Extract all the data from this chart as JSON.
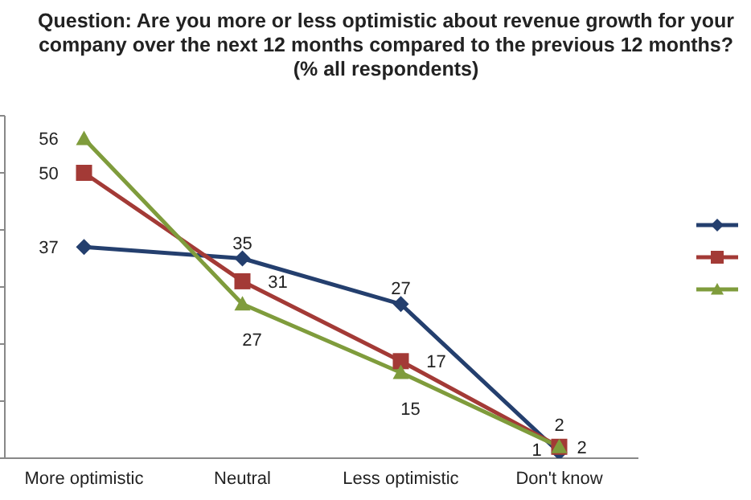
{
  "chart_data": {
    "type": "line",
    "title": "Question: Are you more or less optimistic about revenue growth for your company over the next 12 months compared to the previous 12 months?  (% all respondents)",
    "categories": [
      "More optimistic",
      "Neutral",
      "Less optimistic",
      "Don't know"
    ],
    "series": [
      {
        "color": "#243f6e",
        "values": [
          37,
          35,
          27,
          1
        ],
        "marker": "diamond"
      },
      {
        "color": "#a33a36",
        "values": [
          50,
          31,
          17,
          2
        ],
        "marker": "square"
      },
      {
        "color": "#7f9c3c",
        "values": [
          56,
          27,
          15,
          2
        ],
        "marker": "triangle"
      }
    ],
    "ylim": [
      0,
      60
    ],
    "yticks": [
      {
        "value": 0,
        "label": null
      },
      {
        "value": 10,
        "label": null
      },
      {
        "value": 20,
        "label": null
      },
      {
        "value": 30,
        "label": null
      },
      {
        "value": 40,
        "label": null
      },
      {
        "value": 50,
        "label": null
      },
      {
        "value": 60,
        "label": null
      }
    ],
    "tick_labels": "x",
    "data_labels": true,
    "grid": false,
    "line_style": "solid"
  }
}
